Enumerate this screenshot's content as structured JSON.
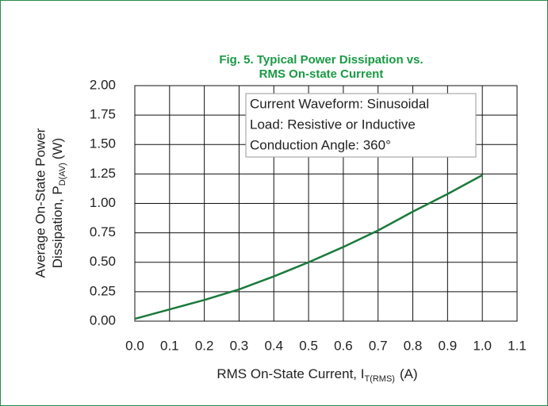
{
  "chart_data": {
    "type": "line",
    "title": [
      "Fig. 5. Typical Power Dissipation vs.",
      "RMS On-state Current"
    ],
    "xlabel": [
      "RMS On-State Current, I",
      "T(RMS)",
      "(A)"
    ],
    "ylabel": [
      "Average On-State Power",
      "Dissipation, P",
      "D(AV)",
      "(W)"
    ],
    "annotations": [
      "Current Waveform: Sinusoidal",
      "Load: Resistive or Inductive",
      "Conduction Angle: 360°"
    ],
    "x": [
      0,
      0.1,
      0.2,
      0.3,
      0.4,
      0.5,
      0.6,
      0.7,
      0.8,
      0.9,
      1.0
    ],
    "series": [
      {
        "color": "#1a7a3c",
        "values": [
          0.02,
          0.1,
          0.18,
          0.27,
          0.38,
          0.5,
          0.63,
          0.77,
          0.93,
          1.08,
          1.24
        ]
      }
    ],
    "xlim": [
      0,
      1.1
    ],
    "xticks": [
      {
        "value": 0,
        "label": "0.0"
      },
      0.1,
      0.2,
      0.3,
      0.4,
      0.5,
      0.6,
      0.7,
      0.8,
      0.9,
      {
        "value": 1.0,
        "label": "1.0"
      },
      1.1
    ],
    "ylim": [
      0,
      2
    ],
    "yticks": [
      {
        "value": 0,
        "label": "0.00"
      },
      {
        "value": 0.25,
        "label": "0.25"
      },
      {
        "value": 0.5,
        "label": "0.50"
      },
      {
        "value": 0.75,
        "label": "0.75"
      },
      {
        "value": 1,
        "label": "1.00"
      },
      {
        "value": 1.25,
        "label": "1.25"
      },
      {
        "value": 1.5,
        "label": "1.50"
      },
      {
        "value": 1.75,
        "label": "1.75"
      },
      {
        "value": 2,
        "label": "2.00"
      }
    ],
    "grid": true
  }
}
